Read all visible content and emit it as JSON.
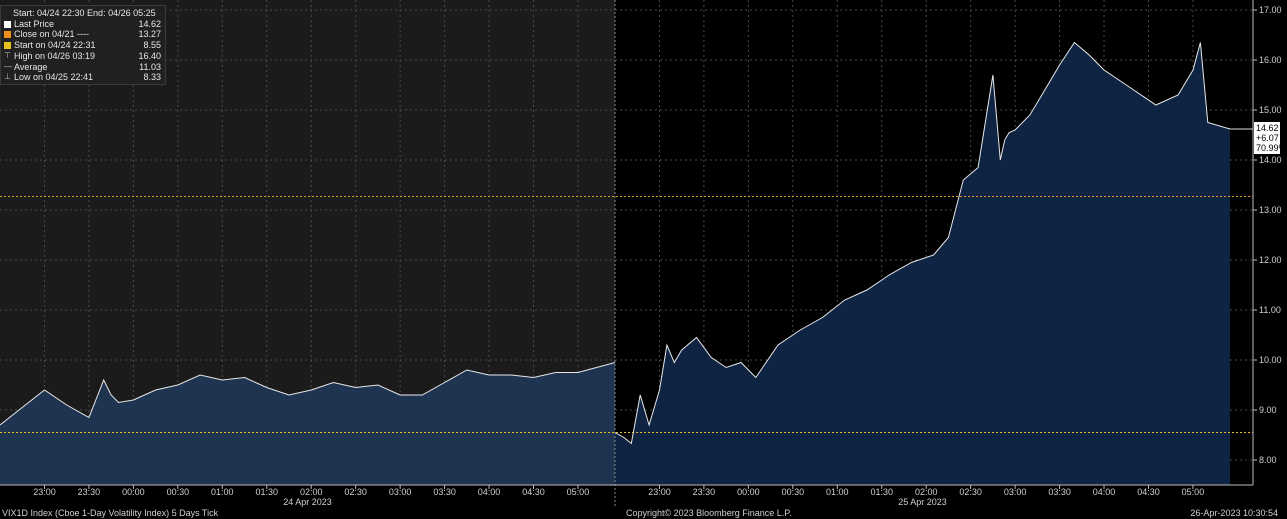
{
  "legend": {
    "header": "Start: 04/24 22:30 End: 04/26 05:25",
    "rows": [
      {
        "label": "Last Price",
        "value": "14.62",
        "color": "#ffffff",
        "symbol": "square"
      },
      {
        "label": "Close on 04/21 ----",
        "value": "13.27",
        "color": "#f0901a",
        "symbol": "square"
      },
      {
        "label": "Start on 04/24 22:31",
        "value": "8.55",
        "color": "#e8c21c",
        "symbol": "square"
      },
      {
        "label": "High on 04/26 03:19",
        "value": "16.40",
        "color": "#bbbbbb",
        "symbol": "high"
      },
      {
        "label": "Average",
        "value": "11.03",
        "color": "#bbbbbb",
        "symbol": "avg"
      },
      {
        "label": "Low on 04/25 22:41",
        "value": "8.33",
        "color": "#bbbbbb",
        "symbol": "low"
      }
    ]
  },
  "last_price_box": {
    "price": "14.62",
    "change": "+6.07",
    "pct": "70.99%"
  },
  "footer": {
    "left": "VIX1D Index (Cboe 1-Day Volatility Index) 5 Days Tick",
    "center": "Copyright© 2023 Bloomberg Finance L.P.",
    "right": "26-Apr-2023 10:30:54"
  },
  "colors": {
    "panel_left_bg": "#1b1b1b",
    "panel_right_bg": "#000000",
    "area_left": "#1e3451",
    "area_right": "#0f2442",
    "line": "#e8e8e8",
    "close_line": "#e39a22",
    "start_line": "#e8c21c",
    "grid": "#4a4a4a"
  },
  "chart_data": {
    "type": "area",
    "title": "",
    "ylim": [
      7.5,
      17.2
    ],
    "yticks": [
      "8.00",
      "9.00",
      "10.00",
      "11.00",
      "12.00",
      "13.00",
      "14.00",
      "15.00",
      "16.00",
      "17.00"
    ],
    "reference_lines": [
      {
        "name": "Close on 04/21",
        "value": 13.27
      },
      {
        "name": "Start on 04/24 22:31",
        "value": 8.55
      }
    ],
    "sessions": [
      {
        "date_label": "24 Apr 2023",
        "ticks": [
          "23:00",
          "23:30",
          "00:00",
          "00:30",
          "01:00",
          "01:30",
          "02:00",
          "02:30",
          "03:00",
          "03:30",
          "04:00",
          "04:30",
          "05:00"
        ],
        "x": [
          "22:30",
          "22:45",
          "23:00",
          "23:15",
          "23:30",
          "23:40",
          "23:45",
          "23:50",
          "24:00",
          "24:15",
          "24:30",
          "24:45",
          "25:00",
          "25:15",
          "25:30",
          "25:45",
          "26:00",
          "26:15",
          "26:30",
          "26:45",
          "27:00",
          "27:15",
          "27:30",
          "27:45",
          "28:00",
          "28:15",
          "28:30",
          "28:45",
          "29:00",
          "29:25"
        ],
        "y": [
          8.7,
          9.05,
          9.4,
          9.1,
          8.85,
          9.6,
          9.3,
          9.15,
          9.2,
          9.4,
          9.5,
          9.7,
          9.6,
          9.65,
          9.45,
          9.3,
          9.4,
          9.55,
          9.45,
          9.5,
          9.3,
          9.3,
          9.55,
          9.8,
          9.7,
          9.7,
          9.65,
          9.75,
          9.75,
          9.95
        ]
      },
      {
        "date_label": "25 Apr 2023",
        "ticks": [
          "23:00",
          "23:30",
          "00:00",
          "00:30",
          "01:00",
          "01:30",
          "02:00",
          "02:30",
          "03:00",
          "03:30",
          "04:00",
          "04:30",
          "05:00"
        ],
        "x": [
          "22:30",
          "22:36",
          "22:41",
          "22:47",
          "22:53",
          "23:00",
          "23:05",
          "23:10",
          "23:15",
          "23:25",
          "23:35",
          "23:45",
          "23:55",
          "24:05",
          "24:20",
          "24:35",
          "24:50",
          "25:05",
          "25:20",
          "25:35",
          "25:50",
          "26:05",
          "26:15",
          "26:25",
          "26:35",
          "26:45",
          "26:50",
          "26:53",
          "26:56",
          "27:00",
          "27:10",
          "27:20",
          "27:30",
          "27:40",
          "27:50",
          "28:00",
          "28:10",
          "28:20",
          "28:35",
          "28:50",
          "29:00",
          "29:05",
          "29:10",
          "29:25"
        ],
        "y": [
          8.55,
          8.45,
          8.33,
          9.3,
          8.7,
          9.4,
          10.3,
          9.95,
          10.2,
          10.45,
          10.05,
          9.85,
          9.95,
          9.65,
          10.3,
          10.6,
          10.85,
          11.2,
          11.4,
          11.7,
          11.95,
          12.1,
          12.45,
          13.6,
          13.85,
          15.7,
          14.0,
          14.4,
          14.55,
          14.6,
          14.9,
          15.4,
          15.9,
          16.35,
          16.1,
          15.8,
          15.6,
          15.4,
          15.1,
          15.3,
          15.8,
          16.35,
          14.75,
          14.62
        ]
      }
    ],
    "last_price": 14.62
  }
}
